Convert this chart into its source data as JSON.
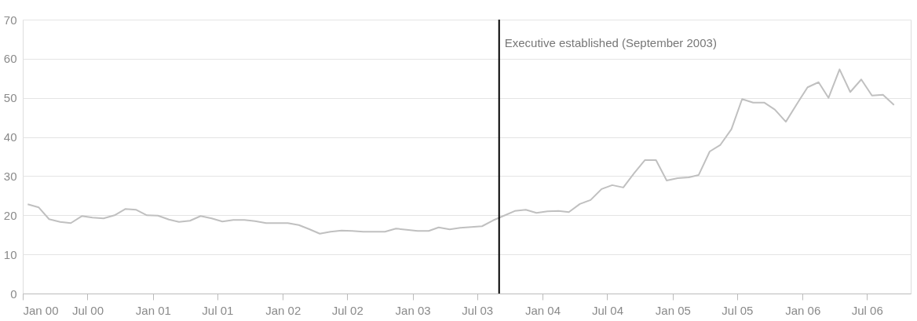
{
  "chart_data": {
    "type": "line",
    "x": [
      "2000-01-15",
      "2000-02-15",
      "2000-03-15",
      "2000-04-15",
      "2000-05-15",
      "2000-06-15",
      "2000-07-15",
      "2000-08-15",
      "2000-09-15",
      "2000-10-15",
      "2000-11-15",
      "2000-12-15",
      "2001-01-15",
      "2001-02-15",
      "2001-03-15",
      "2001-04-15",
      "2001-05-15",
      "2001-06-15",
      "2001-07-15",
      "2001-08-15",
      "2001-09-15",
      "2001-10-15",
      "2001-11-15",
      "2001-12-15",
      "2002-01-15",
      "2002-02-15",
      "2002-03-15",
      "2002-04-15",
      "2002-05-15",
      "2002-06-15",
      "2002-07-15",
      "2002-08-15",
      "2002-09-15",
      "2002-10-15",
      "2002-11-15",
      "2002-12-15",
      "2003-01-15",
      "2003-02-15",
      "2003-03-15",
      "2003-04-15",
      "2003-05-15",
      "2003-06-15",
      "2003-07-15",
      "2003-08-15",
      "2003-09-15",
      "2003-10-15",
      "2003-11-15",
      "2003-12-15",
      "2004-01-15",
      "2004-02-15",
      "2004-03-15",
      "2004-04-15",
      "2004-05-15",
      "2004-06-15",
      "2004-07-15",
      "2004-08-15",
      "2004-09-15",
      "2004-10-15",
      "2004-11-15",
      "2004-12-15",
      "2005-01-15",
      "2005-02-15",
      "2005-03-15",
      "2005-04-15",
      "2005-05-15",
      "2005-06-15",
      "2005-07-15",
      "2005-08-15",
      "2005-09-15",
      "2005-10-15",
      "2005-11-15",
      "2005-12-15",
      "2006-01-15",
      "2006-02-15",
      "2006-03-15",
      "2006-04-15",
      "2006-05-15",
      "2006-06-15",
      "2006-07-15",
      "2006-08-15",
      "2006-09-15"
    ],
    "series": [
      {
        "color": "#c0c0c0",
        "values": [
          22.8,
          22,
          19,
          18.3,
          18,
          19.8,
          19.4,
          19.2,
          20,
          21.6,
          21.4,
          20,
          19.9,
          18.9,
          18.3,
          18.6,
          19.8,
          19.2,
          18.4,
          18.8,
          18.8,
          18.5,
          18,
          18,
          18,
          17.5,
          16.5,
          15.3,
          15.8,
          16.1,
          16,
          15.8,
          15.8,
          15.8,
          16.6,
          16.3,
          16,
          16,
          16.9,
          16.4,
          16.8,
          17,
          17.2,
          18.7,
          19.9,
          21.1,
          21.4,
          20.6,
          21,
          21.1,
          20.8,
          22.9,
          23.9,
          26.7,
          27.7,
          27.1,
          30.8,
          34.1,
          34.1,
          28.9,
          29.5,
          29.7,
          30.3,
          36.3,
          38,
          42,
          49.7,
          48.8,
          48.8,
          47,
          43.9,
          48.3,
          52.7,
          54,
          50,
          57.3,
          51.5,
          54.7,
          50.6,
          50.8,
          48.2
        ]
      }
    ],
    "xlim": [
      "2000-01",
      "2006-11"
    ],
    "xticks": [
      {
        "value": "2000-01",
        "label": "Jan 00"
      },
      {
        "value": "2000-07",
        "label": "Jul 00"
      },
      {
        "value": "2001-01",
        "label": "Jan 01"
      },
      {
        "value": "2001-07",
        "label": "Jul 01"
      },
      {
        "value": "2002-01",
        "label": "Jan 02"
      },
      {
        "value": "2002-07",
        "label": "Jul 02"
      },
      {
        "value": "2003-01",
        "label": "Jan 03"
      },
      {
        "value": "2003-07",
        "label": "Jul 03"
      },
      {
        "value": "2004-01",
        "label": "Jan 04"
      },
      {
        "value": "2004-07",
        "label": "Jul 04"
      },
      {
        "value": "2005-01",
        "label": "Jan 05"
      },
      {
        "value": "2005-07",
        "label": "Jul 05"
      },
      {
        "value": "2006-01",
        "label": "Jan 06"
      },
      {
        "value": "2006-07",
        "label": "Jul 06"
      }
    ],
    "ylim": [
      0,
      70
    ],
    "yticks": [
      0,
      10,
      20,
      30,
      40,
      50,
      60,
      70
    ],
    "grid": "y",
    "legend": false,
    "marker": "none",
    "line_style": "solid",
    "ref_lines": [
      {
        "axis": "x",
        "value": "2003-09",
        "label": "Executive established (September 2003)",
        "color": "#000000"
      }
    ]
  }
}
